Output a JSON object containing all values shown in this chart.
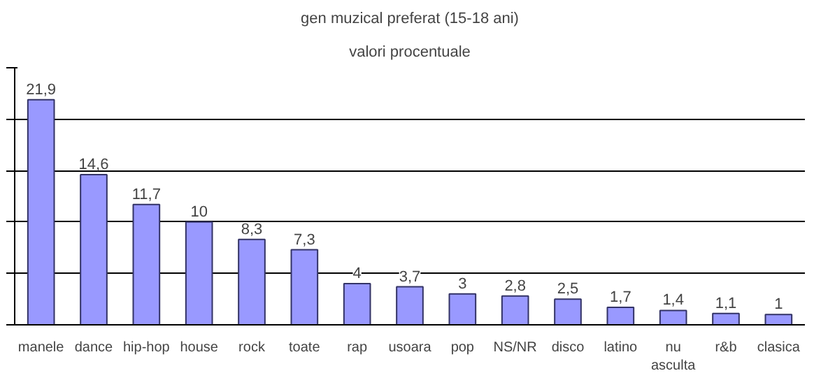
{
  "chart_data": {
    "type": "bar",
    "title": "gen muzical preferat (15-18 ani)",
    "subtitle": "valori procentuale",
    "categories": [
      "manele",
      "dance",
      "hip-hop",
      "house",
      "rock",
      "toate",
      "rap",
      "usoara",
      "pop",
      "NS/NR",
      "disco",
      "latino",
      "nu\nasculta",
      "r&b",
      "clasica"
    ],
    "values": [
      21.9,
      14.6,
      11.7,
      10,
      8.3,
      7.3,
      4,
      3.7,
      3,
      2.8,
      2.5,
      1.7,
      1.4,
      1.1,
      1
    ],
    "value_labels": [
      "21,9",
      "14,6",
      "11,7",
      "10",
      "8,3",
      "7,3",
      "4",
      "3,7",
      "3",
      "2,8",
      "2,5",
      "1,7",
      "1,4",
      "1,1",
      "1"
    ],
    "color": "#9999ff",
    "ylim": [
      0,
      25
    ],
    "yticks": [
      {
        "value": 0,
        "label": null
      },
      {
        "value": 5,
        "label": null
      },
      {
        "value": 10,
        "label": null
      },
      {
        "value": 15,
        "label": null
      },
      {
        "value": 20,
        "label": null
      },
      {
        "value": 25,
        "label": null
      }
    ],
    "tick_labels": "x",
    "grid": "y"
  }
}
